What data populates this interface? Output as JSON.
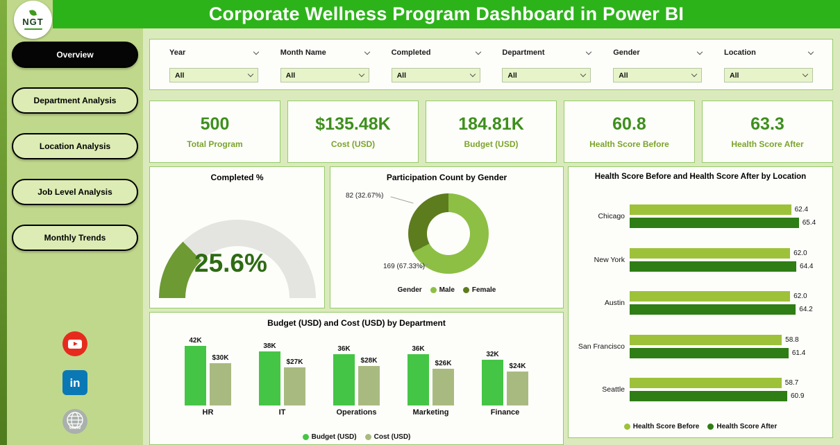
{
  "header": {
    "title": "Corporate Wellness Program Dashboard in Power BI",
    "logo_text": "NGT"
  },
  "colors": {
    "header_green": "#2db31a",
    "sidebar_green": "#c0d88c",
    "page_bg": "#dbeabc",
    "card_border": "#94ca69",
    "kpi_value_green": "#3e8f1d",
    "kpi_label_green": "#7ba32b"
  },
  "sidebar": {
    "items": [
      {
        "label": "Overview",
        "active": true
      },
      {
        "label": "Department Analysis",
        "active": false
      },
      {
        "label": "Location Analysis",
        "active": false
      },
      {
        "label": "Job Level Analysis",
        "active": false
      },
      {
        "label": "Monthly Trends",
        "active": false
      }
    ],
    "social": [
      {
        "name": "youtube"
      },
      {
        "name": "linkedin",
        "glyph": "in"
      },
      {
        "name": "website",
        "glyph": "www"
      }
    ]
  },
  "filters": [
    {
      "label": "Year",
      "value": "All"
    },
    {
      "label": "Month Name",
      "value": "All"
    },
    {
      "label": "Completed",
      "value": "All"
    },
    {
      "label": "Department",
      "value": "All"
    },
    {
      "label": "Gender",
      "value": "All"
    },
    {
      "label": "Location",
      "value": "All"
    }
  ],
  "kpis": [
    {
      "value": "500",
      "label": "Total Program"
    },
    {
      "value": "$135.48K",
      "label": "Cost (USD)"
    },
    {
      "value": "184.81K",
      "label": "Budget (USD)"
    },
    {
      "value": "60.8",
      "label": "Health Score Before"
    },
    {
      "value": "63.3",
      "label": "Health Score After"
    }
  ],
  "chart_data": [
    {
      "type": "gauge",
      "title": "Completed %",
      "value": 25.6,
      "min": 0,
      "max": 100,
      "label": "25.6%",
      "fill_color": "#6d9a33",
      "track_color": "#e4e4e1"
    },
    {
      "type": "pie",
      "title": "Participation Count by Gender",
      "legend_title": "Gender",
      "legend_position": "bottom",
      "slices": [
        {
          "name": "Male",
          "value": 169,
          "pct": 67.33,
          "label": "169 (67.33%)",
          "color": "#8cbf44"
        },
        {
          "name": "Female",
          "value": 82,
          "pct": 32.67,
          "label": "82 (32.67%)",
          "color": "#5d7c1e"
        }
      ]
    },
    {
      "type": "bar",
      "title": "Budget (USD) and Cost (USD) by Department",
      "categories": [
        "HR",
        "IT",
        "Operations",
        "Marketing",
        "Finance"
      ],
      "series": [
        {
          "name": "Budget (USD)",
          "values": [
            42,
            38,
            36,
            36,
            32
          ],
          "labels": [
            "42K",
            "38K",
            "36K",
            "36K",
            "32K"
          ],
          "color": "#45c545"
        },
        {
          "name": "Cost (USD)",
          "values": [
            30,
            27,
            28,
            26,
            24
          ],
          "labels": [
            "$30K",
            "$27K",
            "$28K",
            "$26K",
            "$24K"
          ],
          "color": "#a9ba80"
        }
      ],
      "ylim": [
        0,
        45
      ],
      "legend_position": "bottom"
    },
    {
      "type": "bar",
      "orientation": "horizontal",
      "title": "Health Score Before and Health Score After by Location",
      "categories": [
        "Chicago",
        "New York",
        "Austin",
        "San Francisco",
        "Seattle"
      ],
      "series": [
        {
          "name": "Health Score Before",
          "values": [
            62.4,
            62.0,
            62.0,
            58.8,
            58.7
          ],
          "labels": [
            "62.4",
            "62.0",
            "62.0",
            "58.8",
            "58.7"
          ],
          "color": "#9ec13a"
        },
        {
          "name": "Health Score After",
          "values": [
            65.4,
            64.4,
            64.2,
            61.4,
            60.9
          ],
          "labels": [
            "65.4",
            "64.4",
            "64.2",
            "61.4",
            "60.9"
          ],
          "color": "#2f7d15"
        }
      ],
      "xlim": [
        0,
        66
      ],
      "legend_position": "bottom"
    }
  ]
}
